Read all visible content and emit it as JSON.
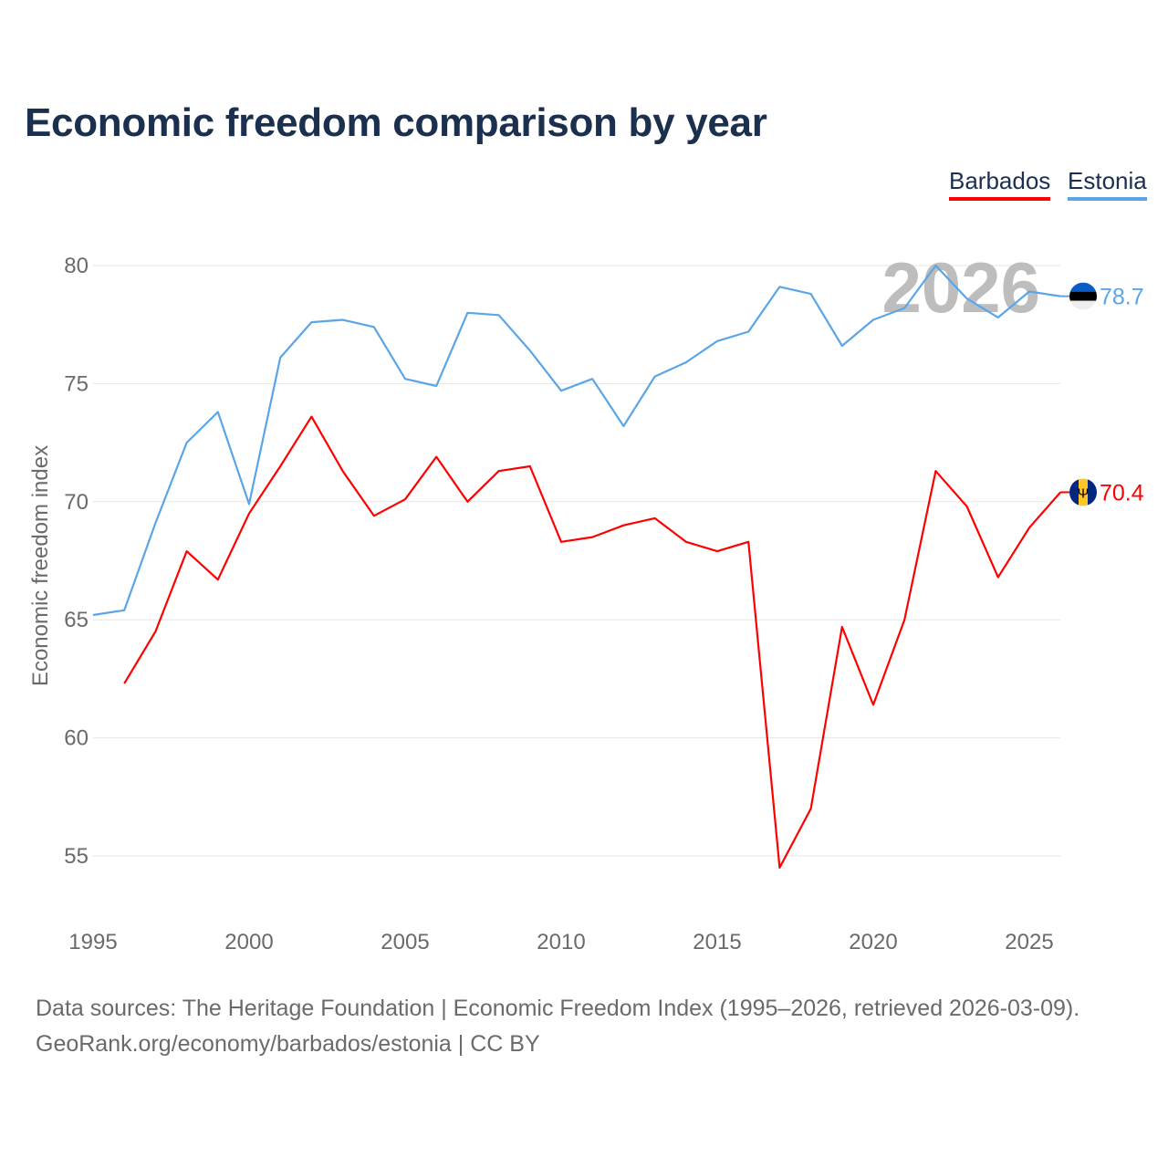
{
  "chart_data": {
    "type": "line",
    "title": "Economic freedom comparison by year",
    "xlabel": "",
    "ylabel": "Economic freedom index",
    "xlim": [
      1995,
      2026
    ],
    "ylim": [
      53,
      81
    ],
    "x_ticks": [
      1995,
      2000,
      2005,
      2010,
      2015,
      2020,
      2025
    ],
    "y_ticks": [
      55,
      60,
      65,
      70,
      75,
      80
    ],
    "grid": true,
    "legend_placement": "top-right",
    "watermark_year": "2026",
    "series": [
      {
        "name": "Barbados",
        "color": "#ff0000",
        "end_label": "70.4",
        "x": [
          1996,
          1997,
          1998,
          1999,
          2000,
          2001,
          2002,
          2003,
          2004,
          2005,
          2006,
          2007,
          2008,
          2009,
          2010,
          2011,
          2012,
          2013,
          2014,
          2015,
          2016,
          2017,
          2018,
          2019,
          2020,
          2021,
          2022,
          2023,
          2024,
          2025,
          2026
        ],
        "values": [
          62.3,
          64.5,
          67.9,
          66.7,
          69.5,
          71.5,
          73.6,
          71.3,
          69.4,
          70.1,
          71.9,
          70.0,
          71.3,
          71.5,
          68.3,
          68.5,
          69.0,
          69.3,
          68.3,
          67.9,
          68.3,
          54.5,
          57.0,
          64.7,
          61.4,
          65.0,
          71.3,
          69.8,
          66.8,
          68.9,
          70.4
        ]
      },
      {
        "name": "Estonia",
        "color": "#5aa5e8",
        "end_label": "78.7",
        "x": [
          1995,
          1996,
          1997,
          1998,
          1999,
          2000,
          2001,
          2002,
          2003,
          2004,
          2005,
          2006,
          2007,
          2008,
          2009,
          2010,
          2011,
          2012,
          2013,
          2014,
          2015,
          2016,
          2017,
          2018,
          2019,
          2020,
          2021,
          2022,
          2023,
          2024,
          2025,
          2026
        ],
        "values": [
          65.2,
          65.4,
          69.1,
          72.5,
          73.8,
          69.9,
          76.1,
          77.6,
          77.7,
          77.4,
          75.2,
          74.9,
          78.0,
          77.9,
          76.4,
          74.7,
          75.2,
          73.2,
          75.3,
          75.9,
          76.8,
          77.2,
          79.1,
          78.8,
          76.6,
          77.7,
          78.2,
          80.0,
          78.6,
          77.8,
          78.9,
          78.7
        ]
      }
    ]
  },
  "footer": {
    "line1": "Data sources: The Heritage Foundation | Economic Freedom Index (1995–2026, retrieved 2026-03-09).",
    "line2": "GeoRank.org/economy/barbados/estonia | CC BY"
  }
}
